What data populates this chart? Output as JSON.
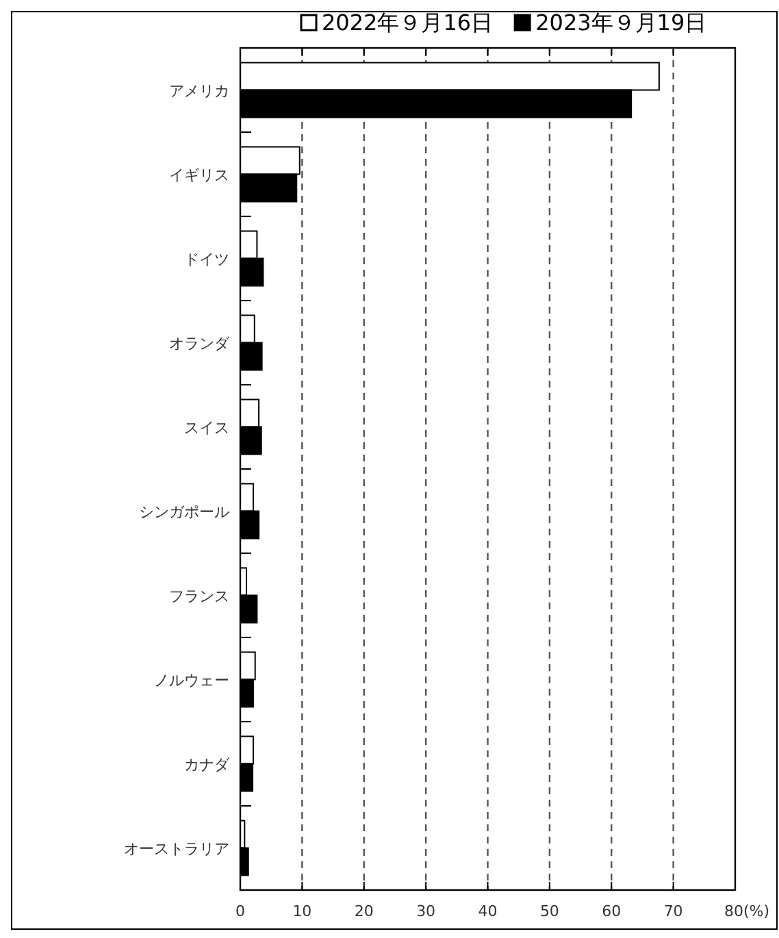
{
  "chart_data": {
    "type": "bar",
    "orientation": "horizontal",
    "categories": [
      "アメリカ",
      "イギリス",
      "ドイツ",
      "オランダ",
      "スイス",
      "シンガポール",
      "フランス",
      "ノルウェー",
      "カナダ",
      "オーストラリア"
    ],
    "series": [
      {
        "name": "2022年９月16日",
        "color": "#ffffff",
        "values": [
          67.7,
          9.6,
          2.7,
          2.3,
          3.0,
          2.1,
          1.0,
          2.4,
          2.1,
          0.7
        ]
      },
      {
        "name": "2023年９月19日",
        "color": "#000000",
        "values": [
          63.2,
          9.1,
          3.7,
          3.5,
          3.4,
          3.0,
          2.7,
          2.1,
          2.0,
          1.3
        ]
      }
    ],
    "xlim": [
      0,
      80
    ],
    "xticks": [
      0,
      10,
      20,
      30,
      40,
      50,
      60,
      70,
      {
        "value": 80,
        "label": "80(%)"
      }
    ],
    "grid": "x",
    "legend": "top"
  }
}
